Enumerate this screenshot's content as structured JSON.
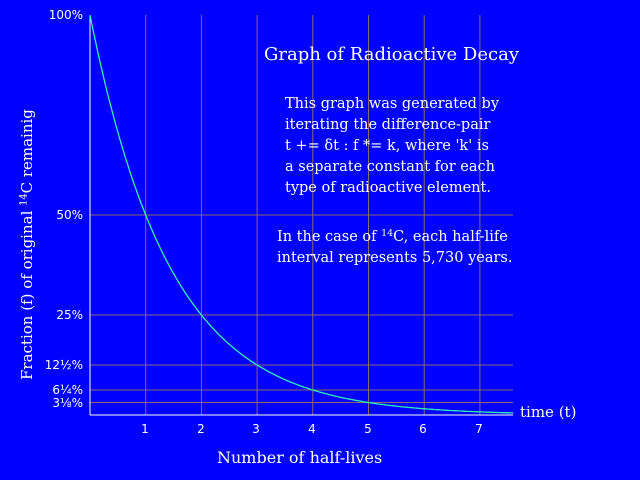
{
  "chart_data": {
    "type": "line",
    "title": "Graph of Radioactive Decay",
    "xlabel": "Number of half-lives",
    "ylabel": "Fraction (f) of original 14C remainig",
    "x_axis_end_label": "time (t)",
    "x": [
      0,
      1,
      2,
      3,
      4,
      5,
      6,
      7,
      7.6
    ],
    "series": [
      {
        "name": "fraction remaining",
        "values": [
          1.0,
          0.5,
          0.25,
          0.125,
          0.0625,
          0.03125,
          0.015625,
          0.0078125,
          0.00515
        ]
      }
    ],
    "xticks": [
      "1",
      "2",
      "3",
      "4",
      "5",
      "6",
      "7"
    ],
    "xtick_values": [
      1,
      2,
      3,
      4,
      5,
      6,
      7
    ],
    "yticks": [
      "100%",
      "50%",
      "25%",
      "12½%",
      "6¼%",
      "3⅛%"
    ],
    "ytick_values": [
      1.0,
      0.5,
      0.25,
      0.125,
      0.0625,
      0.03125
    ],
    "xlim": [
      0,
      7.6
    ],
    "ylim": [
      0,
      1.0
    ],
    "grid": true,
    "legend": null,
    "annotations": [
      "This graph was generated by iterating the difference-pair t += δt : f *= k, where 'k' is a separate constant for each type of radioactive element.",
      "In the case of 14C, each half-life interval represents 5,730 years."
    ]
  },
  "colors": {
    "background": "#0000ff",
    "grid": "#8a6a6a",
    "axis": "#ffffff",
    "curve": "#30f0b0",
    "text": "#ffffff"
  },
  "labels": {
    "title": "Graph of Radioactive Decay",
    "ylabel_pre": "Fraction (f) of original ",
    "ylabel_sup": "14",
    "ylabel_post": "C remainig",
    "xlabel": "Number of half-lives",
    "time": "time (t)",
    "yticks": [
      "100%",
      "50%",
      "25%",
      "12½%",
      "6¼%",
      "3⅛%"
    ],
    "xticks": [
      "1",
      "2",
      "3",
      "4",
      "5",
      "6",
      "7"
    ]
  },
  "annotation1": {
    "lines": [
      "This graph was generated by",
      "iterating the difference-pair",
      "t += δt : f *= k, where 'k' is",
      "a separate constant for each",
      "type of radioactive element."
    ]
  },
  "annotation2": {
    "line1_pre": "In the case of ",
    "line1_sup": "14",
    "line1_post": "C, each half-life",
    "line2": "interval represents 5,730 years."
  }
}
